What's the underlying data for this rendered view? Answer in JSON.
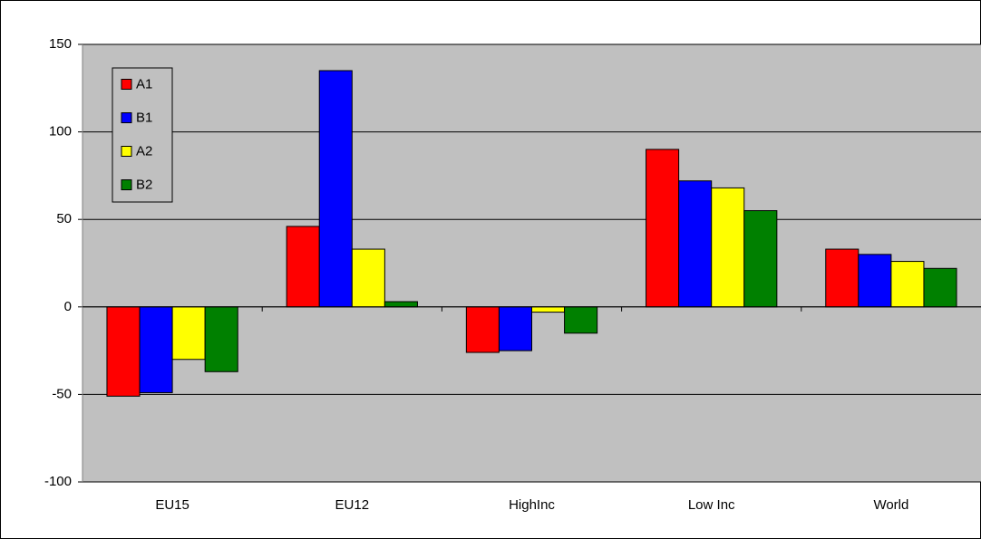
{
  "chart_data": {
    "type": "bar",
    "categories": [
      "EU15",
      "EU12",
      "HighInc",
      "Low Inc",
      "World"
    ],
    "series": [
      {
        "name": "A1",
        "color": "#ff0000",
        "values": [
          -51,
          46,
          -26,
          90,
          33
        ]
      },
      {
        "name": "B1",
        "color": "#0000ff",
        "values": [
          -49,
          135,
          -25,
          72,
          30
        ]
      },
      {
        "name": "A2",
        "color": "#ffff00",
        "values": [
          -30,
          33,
          -3,
          68,
          26
        ]
      },
      {
        "name": "B2",
        "color": "#008000",
        "values": [
          -37,
          3,
          -15,
          55,
          22
        ]
      }
    ],
    "ylim": [
      -100,
      150
    ],
    "yticks": [
      -100,
      -50,
      0,
      50,
      100,
      150
    ],
    "grid": true,
    "legend": "upper left",
    "background": "#c0c0c0"
  }
}
